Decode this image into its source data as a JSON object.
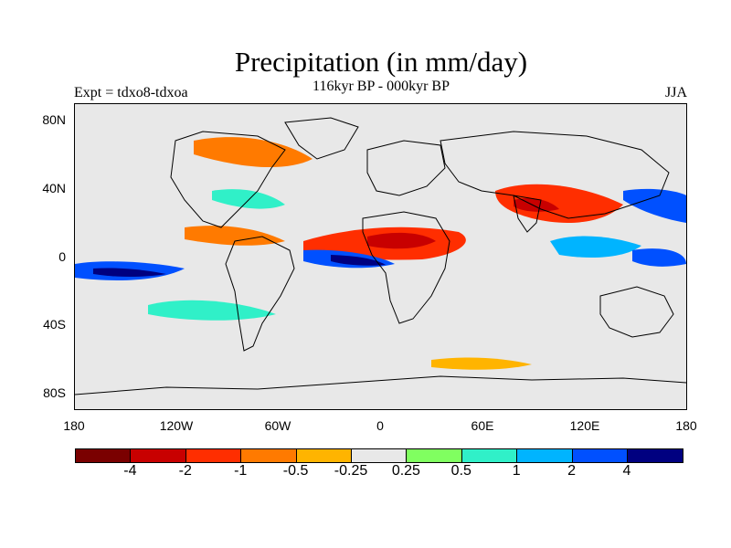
{
  "title": "Precipitation (in mm/day)",
  "subtitle": "116kyr BP - 000kyr BP",
  "left_label": "Expt = tdxo8-tdxoa",
  "right_label": "JJA",
  "y_ticks": [
    "80N",
    "40N",
    "0",
    "40S",
    "80S"
  ],
  "x_ticks": [
    "180",
    "120W",
    "60W",
    "0",
    "60E",
    "120E",
    "180"
  ],
  "colorbar": {
    "colors": [
      "#7a0000",
      "#c80000",
      "#ff2e00",
      "#ff7a00",
      "#ffb400",
      "#e8e8e8",
      "#80ff60",
      "#30f0c8",
      "#00b4ff",
      "#0050ff",
      "#000080"
    ],
    "labels": [
      "-4",
      "-2",
      "-1",
      "-0.5",
      "-0.25",
      "0.25",
      "0.5",
      "1",
      "2",
      "4"
    ]
  }
}
